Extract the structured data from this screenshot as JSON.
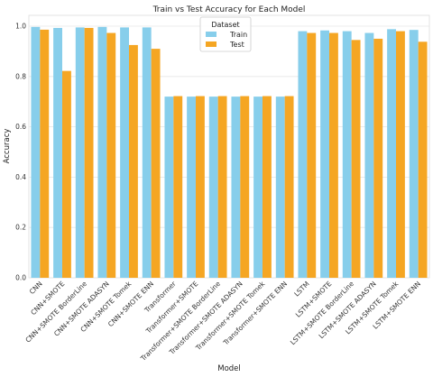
{
  "chart_data": {
    "type": "bar",
    "title": "Train vs Test Accuracy for Each Model",
    "xlabel": "Model",
    "ylabel": "Accuracy",
    "ylim": [
      0,
      1.0
    ],
    "yticks": [
      "0.0",
      "0.2",
      "0.4",
      "0.6",
      "0.8",
      "1.0"
    ],
    "ytick_values": [
      0,
      0.2,
      0.4,
      0.6,
      0.8,
      1.0
    ],
    "grid": true,
    "legend": {
      "title": "Dataset",
      "placement": "top-center"
    },
    "categories": [
      "CNN",
      "CNN+SMOTE",
      "CNN+SMOTE BorderLine",
      "CNN+SMOTE ADASYN",
      "CNN+SMOTE Tomek",
      "CNN+SMOTE ENN",
      "Transformer",
      "Transformer+SMOTE",
      "Transformer+SMOTE BorderLine",
      "Transformer+SMOTE ADASYN",
      "Transformer+SMOTE Tomek",
      "Transformer+SMOTE ENN",
      "LSTM",
      "LSTM+SMOTE",
      "LSTM+SMOTE BorderLine",
      "LSTM+SMOTE ADASYN",
      "LSTM+SMOTE Tomek",
      "LSTM+SMOTE ENN"
    ],
    "series": [
      {
        "name": "Train",
        "color": "#87ceeb",
        "values": [
          0.997,
          0.993,
          0.995,
          0.997,
          0.995,
          0.995,
          0.72,
          0.72,
          0.72,
          0.72,
          0.72,
          0.72,
          0.98,
          0.983,
          0.98,
          0.973,
          0.988,
          0.985
        ]
      },
      {
        "name": "Test",
        "color": "#f5a623",
        "values": [
          0.986,
          0.822,
          0.993,
          0.973,
          0.925,
          0.91,
          0.722,
          0.722,
          0.722,
          0.722,
          0.722,
          0.722,
          0.973,
          0.973,
          0.945,
          0.95,
          0.98,
          0.938
        ]
      }
    ]
  }
}
